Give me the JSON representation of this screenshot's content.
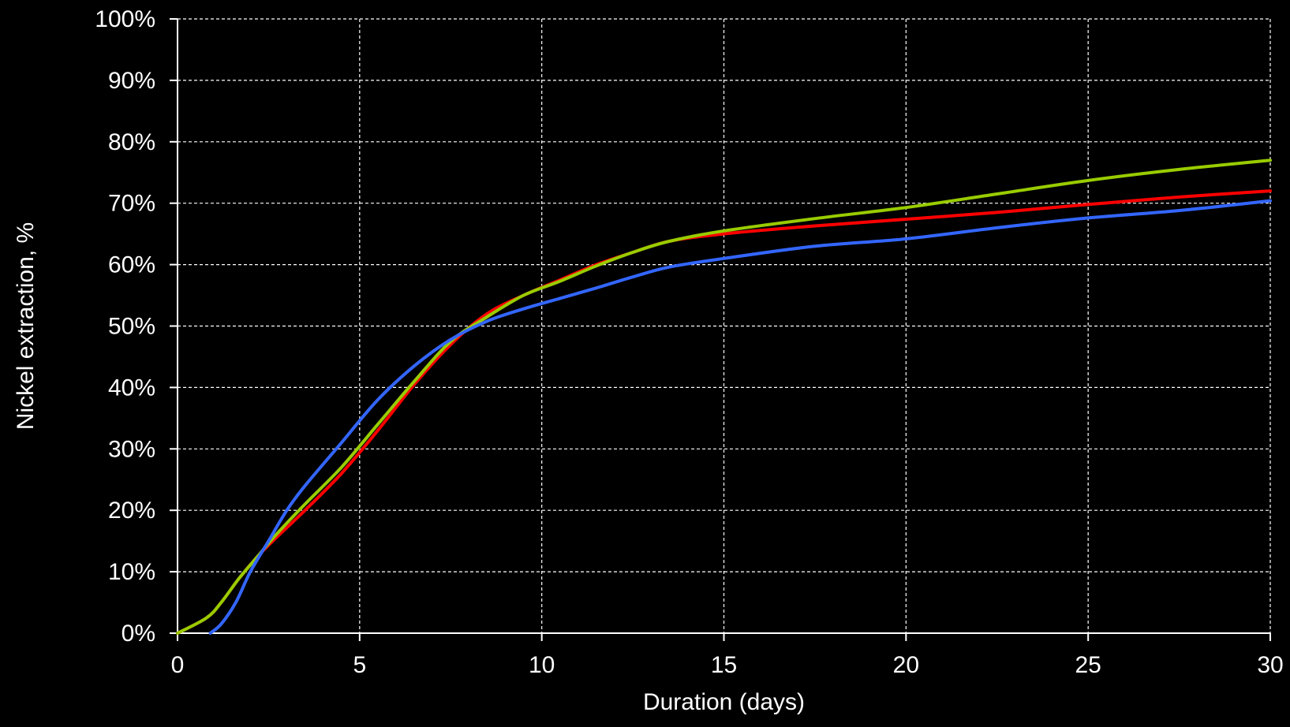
{
  "chart_data": {
    "type": "line",
    "title": "",
    "xlabel": "Duration (days)",
    "ylabel": "Nickel extraction, %",
    "xlim": [
      0,
      30
    ],
    "ylim": [
      0,
      100
    ],
    "x_ticks": [
      0,
      5,
      10,
      15,
      20,
      25,
      30
    ],
    "x_tick_labels": [
      "0",
      "5",
      "10",
      "15",
      "20",
      "25",
      "30"
    ],
    "y_ticks": [
      0,
      10,
      20,
      30,
      40,
      50,
      60,
      70,
      80,
      90,
      100
    ],
    "y_tick_labels": [
      "0%",
      "10%",
      "20%",
      "30%",
      "40%",
      "50%",
      "60%",
      "70%",
      "80%",
      "90%",
      "100%"
    ],
    "grid": true,
    "legend": "none",
    "series": [
      {
        "color": "#ff0000",
        "x": [
          0,
          0.8,
          1.2,
          1.7,
          2.2,
          2.7,
          3.5,
          4.5,
          5.5,
          6.5,
          7.5,
          8.5,
          9.5,
          10.5,
          11.5,
          12.5,
          13.5,
          15,
          17.5,
          20,
          22.5,
          25,
          27.5,
          30
        ],
        "y": [
          0,
          2.5,
          5,
          9,
          12.5,
          15.5,
          20,
          26,
          33,
          40.5,
          47,
          52,
          55,
          57.5,
          60,
          62,
          63.8,
          65,
          66.3,
          67.4,
          68.5,
          69.8,
          71,
          72
        ]
      },
      {
        "color": "#99cc00",
        "x": [
          0,
          0.8,
          1.2,
          1.7,
          2.2,
          2.7,
          3.5,
          4.5,
          5.5,
          6.5,
          7.5,
          8.5,
          9.5,
          10.5,
          11.5,
          12.5,
          13.5,
          15,
          17.5,
          20,
          22.5,
          25,
          27.5,
          30
        ],
        "y": [
          0,
          2.5,
          5,
          9,
          12.5,
          16,
          21,
          27,
          34,
          41,
          47.5,
          51.5,
          55,
          57.3,
          59.8,
          62,
          63.8,
          65.5,
          67.5,
          69.3,
          71.5,
          73.7,
          75.5,
          77
        ]
      },
      {
        "color": "#3366ff",
        "x": [
          0.9,
          1.2,
          1.6,
          2.0,
          2.5,
          3.0,
          3.5,
          4.5,
          5.5,
          6.5,
          7.5,
          8.5,
          9.5,
          10.5,
          11.5,
          12.5,
          13.5,
          15,
          17.5,
          20,
          22.5,
          25,
          27.5,
          30
        ],
        "y": [
          0,
          1.5,
          5,
          10,
          15,
          20,
          24,
          31,
          38,
          43.5,
          47.8,
          50.8,
          52.8,
          54.5,
          56.2,
          58,
          59.6,
          61,
          63,
          64.2,
          66,
          67.6,
          68.8,
          70.4
        ]
      }
    ]
  }
}
